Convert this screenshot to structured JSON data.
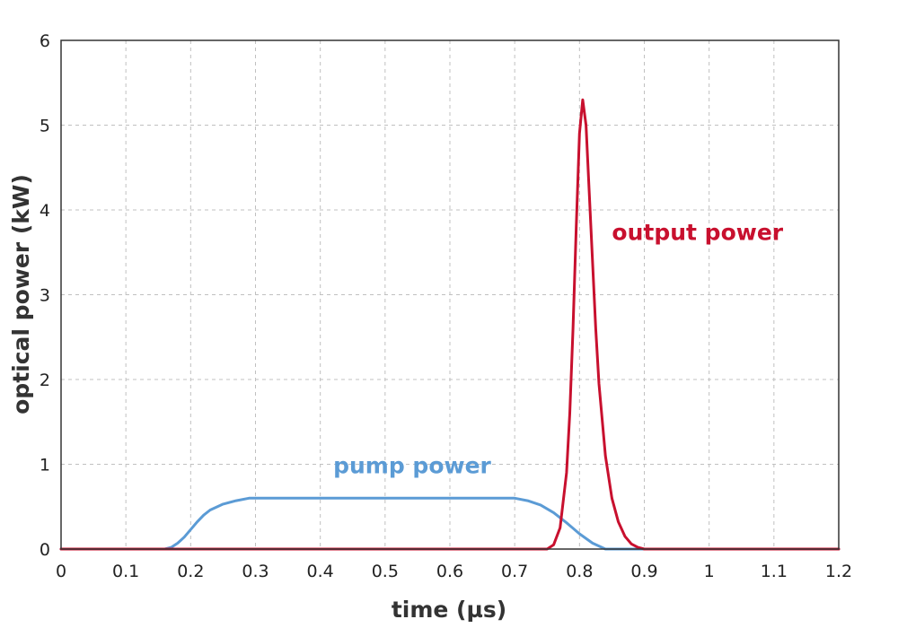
{
  "chart_data": {
    "type": "line",
    "xlabel": "time (µs)",
    "ylabel": "optical power (kW)",
    "xlim": [
      0,
      1.2
    ],
    "ylim": [
      0,
      6
    ],
    "xticks": [
      0,
      0.1,
      0.2,
      0.3,
      0.4,
      0.5,
      0.6,
      0.7,
      0.8,
      0.9,
      1,
      1.1,
      1.2
    ],
    "xtick_labels": [
      "0",
      "0.1",
      "0.2",
      "0.3",
      "0.4",
      "0.5",
      "0.6",
      "0.7",
      "0.8",
      "0.9",
      "1",
      "1.1",
      "1.2"
    ],
    "yticks": [
      0,
      1,
      2,
      3,
      4,
      5,
      6
    ],
    "ytick_labels": [
      "0",
      "1",
      "2",
      "3",
      "4",
      "5",
      "6"
    ],
    "grid": true,
    "series": [
      {
        "name": "pump power",
        "color": "#5b9bd5",
        "x": [
          0,
          0.16,
          0.17,
          0.18,
          0.19,
          0.2,
          0.21,
          0.22,
          0.23,
          0.25,
          0.27,
          0.29,
          0.3,
          0.4,
          0.5,
          0.6,
          0.7,
          0.72,
          0.74,
          0.76,
          0.78,
          0.8,
          0.82,
          0.84,
          0.9,
          1.2
        ],
        "y": [
          0,
          0,
          0.02,
          0.07,
          0.14,
          0.23,
          0.32,
          0.4,
          0.46,
          0.53,
          0.57,
          0.6,
          0.6,
          0.6,
          0.6,
          0.6,
          0.6,
          0.57,
          0.52,
          0.43,
          0.31,
          0.18,
          0.07,
          0,
          0,
          0
        ]
      },
      {
        "name": "output power",
        "color": "#c8102e",
        "x": [
          0,
          0.75,
          0.76,
          0.77,
          0.78,
          0.785,
          0.79,
          0.795,
          0.8,
          0.805,
          0.81,
          0.815,
          0.82,
          0.825,
          0.83,
          0.84,
          0.85,
          0.86,
          0.87,
          0.88,
          0.89,
          0.9,
          1.2
        ],
        "y": [
          0,
          0,
          0.05,
          0.25,
          0.9,
          1.6,
          2.6,
          3.8,
          4.9,
          5.3,
          5.0,
          4.2,
          3.4,
          2.6,
          1.95,
          1.1,
          0.6,
          0.32,
          0.15,
          0.06,
          0.02,
          0,
          0
        ]
      }
    ],
    "annotations": [
      {
        "text": "pump power",
        "x": 0.42,
        "y": 1.0,
        "color": "#5b9bd5"
      },
      {
        "text": "output power",
        "x": 0.85,
        "y": 3.75,
        "color": "#c8102e"
      }
    ]
  }
}
